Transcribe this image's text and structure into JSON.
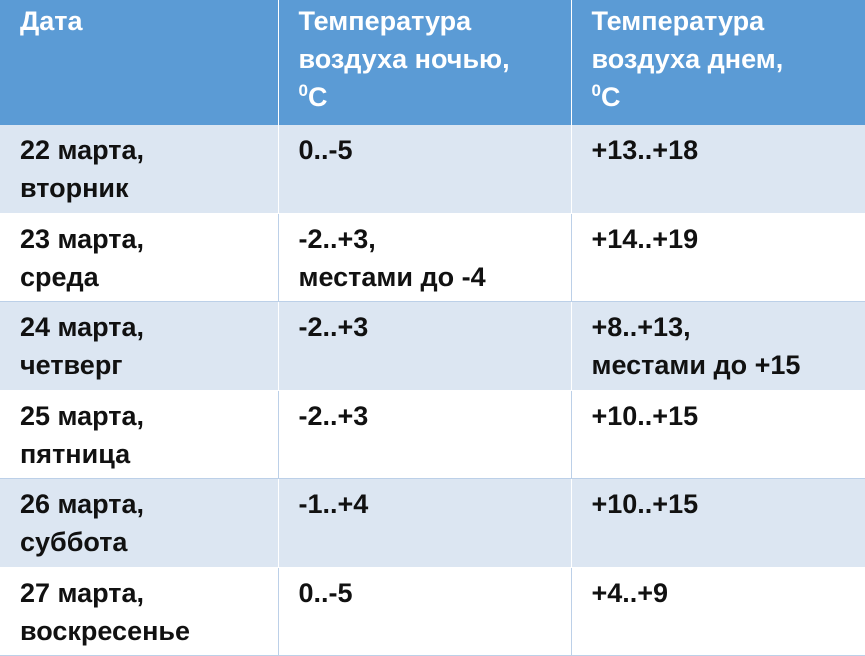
{
  "header": {
    "date": "Дата",
    "night_line1": "Температура",
    "night_line2": "воздуха ночью,",
    "day_line1": "Температура",
    "day_line2": "воздуха днем,",
    "degree_sup": "0",
    "unit": "С"
  },
  "rows": [
    {
      "date_line1": "22 марта,",
      "date_line2": "вторник",
      "night_line1": "0..-5",
      "night_line2": "",
      "day_line1": "+13..+18",
      "day_line2": ""
    },
    {
      "date_line1": "23 марта,",
      "date_line2": "среда",
      "night_line1": "-2..+3,",
      "night_line2": "местами до -4",
      "day_line1": "+14..+19",
      "day_line2": ""
    },
    {
      "date_line1": "24 марта,",
      "date_line2": "четверг",
      "night_line1": "-2..+3",
      "night_line2": "",
      "day_line1": "+8..+13,",
      "day_line2": "местами до +15"
    },
    {
      "date_line1": "25 марта,",
      "date_line2": "пятница",
      "night_line1": "-2..+3",
      "night_line2": "",
      "day_line1": "+10..+15",
      "day_line2": ""
    },
    {
      "date_line1": "26 марта,",
      "date_line2": "суббота",
      "night_line1": "-1..+4",
      "night_line2": "",
      "day_line1": "+10..+15",
      "day_line2": ""
    },
    {
      "date_line1": "27 марта,",
      "date_line2": "воскресенье",
      "night_line1": "0..-5",
      "night_line2": "",
      "day_line1": "+4..+9",
      "day_line2": ""
    }
  ],
  "colors": {
    "header_bg": "#5b9bd5",
    "stripe_bg": "#dce6f2",
    "text": "#111111"
  }
}
